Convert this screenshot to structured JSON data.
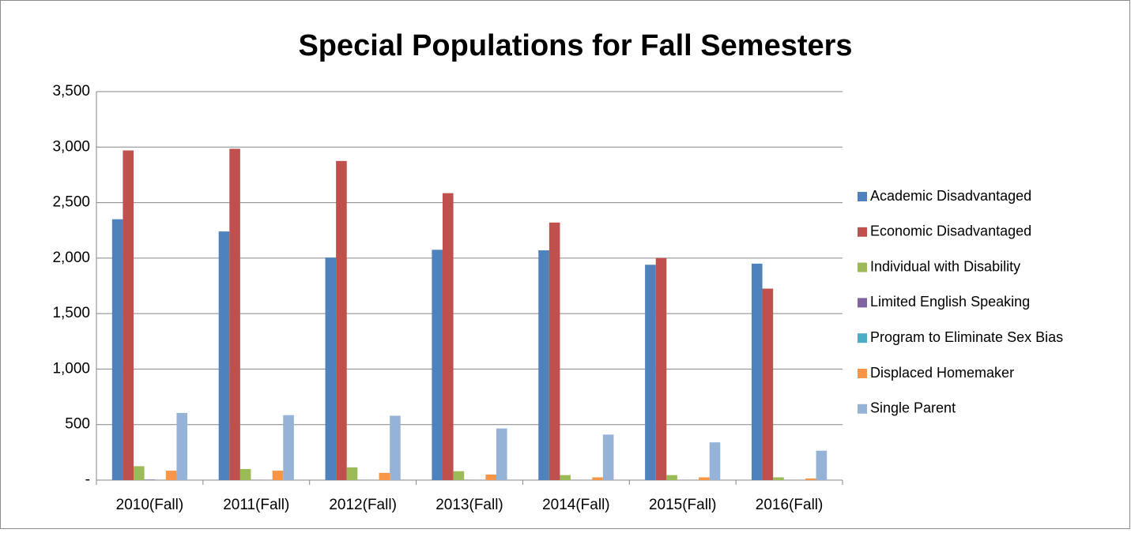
{
  "chart_data": {
    "type": "bar",
    "title": "Special Populations for Fall Semesters",
    "categories": [
      "2010(Fall)",
      "2011(Fall)",
      "2012(Fall)",
      "2013(Fall)",
      "2014(Fall)",
      "2015(Fall)",
      "2016(Fall)"
    ],
    "series": [
      {
        "name": "Academic Disadvantaged",
        "color": "#4f81bd",
        "values": [
          2350,
          2240,
          2005,
          2075,
          2070,
          1940,
          1950
        ]
      },
      {
        "name": "Economic Disadvantaged",
        "color": "#c0504d",
        "values": [
          2970,
          2985,
          2875,
          2585,
          2320,
          2000,
          1725
        ]
      },
      {
        "name": "Individual with Disability",
        "color": "#9bbb59",
        "values": [
          125,
          100,
          115,
          80,
          45,
          45,
          25
        ]
      },
      {
        "name": "Limited English Speaking",
        "color": "#8064a2",
        "values": [
          5,
          3,
          2,
          2,
          1,
          1,
          1
        ]
      },
      {
        "name": "Program to Eliminate Sex Bias",
        "color": "#4bacc6",
        "values": [
          0,
          0,
          0,
          0,
          0,
          0,
          0
        ]
      },
      {
        "name": "Displaced Homemaker",
        "color": "#f79646",
        "values": [
          85,
          85,
          65,
          50,
          25,
          25,
          15
        ]
      },
      {
        "name": "Single Parent",
        "color": "#95b3d7",
        "values": [
          605,
          585,
          580,
          465,
          410,
          340,
          265
        ]
      }
    ],
    "ylim": [
      0,
      3500
    ],
    "yticks": [
      {
        "value": 0,
        "label": "-"
      },
      500,
      {
        "value": 1000,
        "label": "1,000"
      },
      {
        "value": 1500,
        "label": "1,500"
      },
      {
        "value": 2000,
        "label": "2,000"
      },
      {
        "value": 2500,
        "label": "2,500"
      },
      {
        "value": 3000,
        "label": "3,000"
      },
      {
        "value": 3500,
        "label": "3,500"
      }
    ],
    "grid": true,
    "legend": "right"
  }
}
